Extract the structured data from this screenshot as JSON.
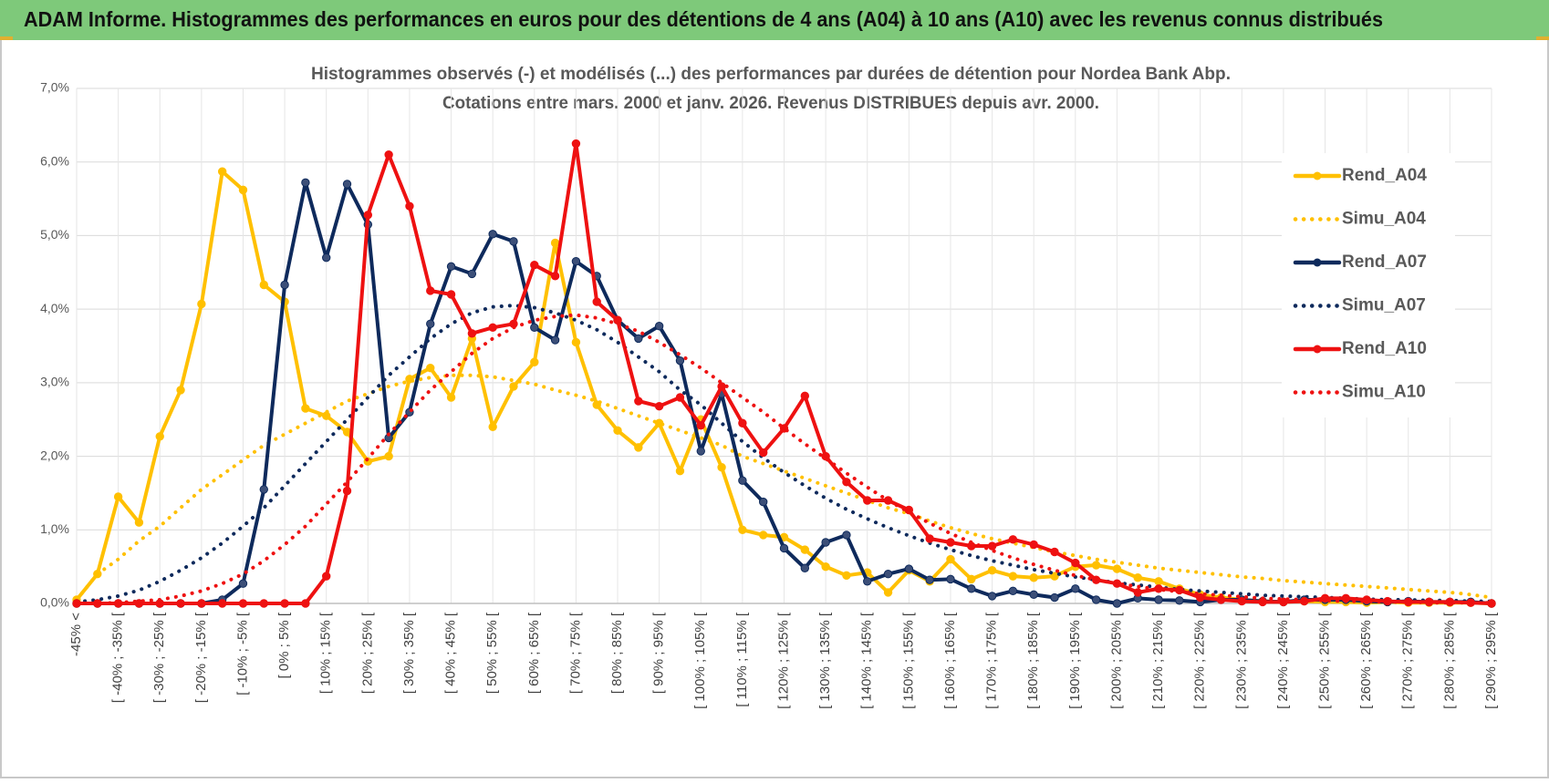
{
  "header": {
    "title": "ADAM Informe. Histogrammes des performances en euros pour des détentions de 4 ans (A04) à 10 ans (A10) avec les revenus connus distribués"
  },
  "chart_data": {
    "type": "line",
    "title": [
      "Histogrammes observés (-) et modélisés (...) des performances par durées de détention pour Nordea Bank Abp.",
      "Cotations entre mars. 2000  et janv. 2026.  Revenus DISTRIBUES depuis avr. 2000."
    ],
    "categories": [
      "-45% <",
      null,
      "[ -40% ; -35% [",
      null,
      "[ -30% ; -25% [",
      null,
      "[ -20% ; -15% [",
      null,
      "[ -10% ; -5% [",
      null,
      "[ 0% ; 5% [",
      null,
      "[ 10% ; 15% [",
      null,
      "[ 20% ; 25% [",
      null,
      "[ 30% ; 35% [",
      null,
      "[ 40% ; 45% [",
      null,
      "[ 50% ; 55% [",
      null,
      "[ 60% ; 65% [",
      null,
      "[ 70% ; 75% [",
      null,
      "[ 80% ; 85% [",
      null,
      "[ 90% ; 95% [",
      null,
      "[ 100% ; 105% [",
      null,
      "[ 110% ; 115% [",
      null,
      "[ 120% ; 125% [",
      null,
      "[ 130% ; 135% [",
      null,
      "[ 140% ; 145% [",
      null,
      "[ 150% ; 155% [",
      null,
      "[ 160% ; 165% [",
      null,
      "[ 170% ; 175% [",
      null,
      "[ 180% ; 185% [",
      null,
      "[ 190% ; 195% [",
      null,
      "[ 200% ; 205% [",
      null,
      "[ 210% ; 215% [",
      null,
      "[ 220% ; 225% [",
      null,
      "[ 230% ; 235% [",
      null,
      "[ 240% ; 245% [",
      null,
      "[ 250% ; 255% [",
      null,
      "[ 260% ; 265% [",
      null,
      "[ 270% ; 275% [",
      null,
      "[ 280% ; 285% [",
      null,
      "[ 290% ; 295% ["
    ],
    "series": [
      {
        "name": "Rend_A04",
        "color": "#ffc000",
        "style": "solid",
        "markers": true,
        "values": [
          0.05,
          0.4,
          1.45,
          1.1,
          2.27,
          2.9,
          4.07,
          5.87,
          5.62,
          4.33,
          4.1,
          2.65,
          2.55,
          2.33,
          1.93,
          2.0,
          3.05,
          3.2,
          2.8,
          3.6,
          2.4,
          2.95,
          3.28,
          4.9,
          3.55,
          2.7,
          2.35,
          2.12,
          2.45,
          1.8,
          2.5,
          1.85,
          1.0,
          0.93,
          0.9,
          0.73,
          0.5,
          0.38,
          0.42,
          0.15,
          0.45,
          0.3,
          0.6,
          0.33,
          0.45,
          0.37,
          0.35,
          0.37,
          0.5,
          0.52,
          0.47,
          0.35,
          0.3,
          0.2,
          0.12,
          0.08,
          0.05,
          0.03,
          0.02,
          0.03,
          0.02,
          0.02,
          0.01,
          0.02,
          0.01,
          0.01,
          0.01,
          0.01,
          0
        ]
      },
      {
        "name": "Simu_A04",
        "color": "#ffc000",
        "style": "dotted",
        "markers": false,
        "values": [
          0.05,
          0.4,
          0.6,
          0.85,
          1.05,
          1.3,
          1.55,
          1.75,
          1.95,
          2.15,
          2.3,
          2.45,
          2.6,
          2.75,
          2.85,
          2.95,
          3.02,
          3.07,
          3.1,
          3.1,
          3.08,
          3.03,
          2.98,
          2.9,
          2.83,
          2.75,
          2.65,
          2.55,
          2.45,
          2.35,
          2.25,
          2.15,
          2.0,
          1.9,
          1.8,
          1.7,
          1.6,
          1.5,
          1.4,
          1.3,
          1.22,
          1.12,
          1.03,
          0.95,
          0.88,
          0.82,
          0.76,
          0.7,
          0.65,
          0.6,
          0.56,
          0.52,
          0.48,
          0.45,
          0.42,
          0.39,
          0.36,
          0.34,
          0.31,
          0.29,
          0.27,
          0.25,
          0.23,
          0.21,
          0.19,
          0.17,
          0.15,
          0.12,
          0.08
        ]
      },
      {
        "name": "Rend_A07",
        "color": "#0e2a5c",
        "style": "solid",
        "markers": true,
        "values": [
          0,
          0,
          0,
          0,
          0,
          0,
          0,
          0.05,
          0.27,
          1.55,
          4.33,
          5.72,
          4.7,
          5.7,
          5.15,
          2.25,
          2.6,
          3.8,
          4.58,
          4.48,
          5.02,
          4.92,
          3.75,
          3.58,
          4.65,
          4.45,
          3.85,
          3.6,
          3.77,
          3.3,
          2.07,
          2.85,
          1.67,
          1.38,
          0.75,
          0.48,
          0.83,
          0.93,
          0.3,
          0.4,
          0.47,
          0.32,
          0.33,
          0.2,
          0.1,
          0.17,
          0.12,
          0.08,
          0.2,
          0.05,
          0,
          0.07,
          0.05,
          0.04,
          0.02,
          0.05,
          0.05,
          0.03,
          0.02,
          0.05,
          0.05,
          0.05,
          0.03,
          0.02,
          0.03,
          0.02,
          0.02,
          0.02,
          0
        ]
      },
      {
        "name": "Simu_A07",
        "color": "#0e2a5c",
        "style": "dotted",
        "markers": false,
        "values": [
          0.02,
          0.05,
          0.1,
          0.18,
          0.3,
          0.45,
          0.62,
          0.82,
          1.05,
          1.3,
          1.6,
          1.9,
          2.2,
          2.5,
          2.8,
          3.1,
          3.35,
          3.6,
          3.8,
          3.95,
          4.03,
          4.05,
          4.02,
          3.95,
          3.85,
          3.72,
          3.55,
          3.35,
          3.15,
          2.9,
          2.7,
          2.45,
          2.2,
          1.98,
          1.78,
          1.6,
          1.43,
          1.28,
          1.15,
          1.03,
          0.92,
          0.82,
          0.73,
          0.65,
          0.58,
          0.52,
          0.46,
          0.41,
          0.36,
          0.32,
          0.28,
          0.25,
          0.22,
          0.19,
          0.17,
          0.15,
          0.13,
          0.11,
          0.1,
          0.09,
          0.08,
          0.07,
          0.06,
          0.05,
          0.05,
          0.04,
          0.04,
          0.03,
          0.03
        ]
      },
      {
        "name": "Rend_A10",
        "color": "#ee1111",
        "style": "solid",
        "markers": true,
        "values": [
          0,
          0,
          0,
          0,
          0,
          0,
          0,
          0,
          0,
          0,
          0,
          0,
          0.37,
          1.53,
          5.28,
          6.1,
          5.4,
          4.25,
          4.2,
          3.67,
          3.75,
          3.8,
          4.6,
          4.45,
          6.25,
          4.1,
          3.85,
          2.75,
          2.68,
          2.8,
          2.42,
          2.95,
          2.45,
          2.05,
          2.38,
          2.82,
          2.0,
          1.65,
          1.4,
          1.4,
          1.27,
          0.88,
          0.83,
          0.78,
          0.78,
          0.87,
          0.8,
          0.7,
          0.55,
          0.32,
          0.27,
          0.15,
          0.2,
          0.18,
          0.08,
          0.05,
          0.03,
          0.02,
          0.02,
          0.03,
          0.07,
          0.07,
          0.05,
          0.03,
          0.02,
          0.02,
          0.02,
          0.01,
          0
        ]
      },
      {
        "name": "Simu_A10",
        "color": "#ee1111",
        "style": "dotted",
        "markers": false,
        "values": [
          0,
          0,
          0.01,
          0.03,
          0.05,
          0.1,
          0.17,
          0.27,
          0.4,
          0.58,
          0.8,
          1.05,
          1.35,
          1.65,
          1.97,
          2.3,
          2.6,
          2.9,
          3.15,
          3.4,
          3.6,
          3.75,
          3.85,
          3.9,
          3.92,
          3.88,
          3.8,
          3.7,
          3.55,
          3.38,
          3.2,
          3.0,
          2.8,
          2.6,
          2.38,
          2.17,
          1.97,
          1.77,
          1.58,
          1.4,
          1.24,
          1.09,
          0.95,
          0.83,
          0.72,
          0.62,
          0.53,
          0.45,
          0.38,
          0.32,
          0.27,
          0.23,
          0.19,
          0.16,
          0.13,
          0.11,
          0.09,
          0.07,
          0.06,
          0.05,
          0.04,
          0.03,
          0.03,
          0.02,
          0.02,
          0.01,
          0.01,
          0.01,
          0.01
        ]
      }
    ],
    "ylim": [
      0,
      7
    ],
    "yticks": [
      {
        "value": 0,
        "label": "0,0%"
      },
      {
        "value": 1,
        "label": "1,0%"
      },
      {
        "value": 2,
        "label": "2,0%"
      },
      {
        "value": 3,
        "label": "3,0%"
      },
      {
        "value": 4,
        "label": "4,0%"
      },
      {
        "value": 5,
        "label": "5,0%"
      },
      {
        "value": 6,
        "label": "6,0%"
      },
      {
        "value": 7,
        "label": "7,0%"
      }
    ],
    "grid": true,
    "legend": "right"
  }
}
